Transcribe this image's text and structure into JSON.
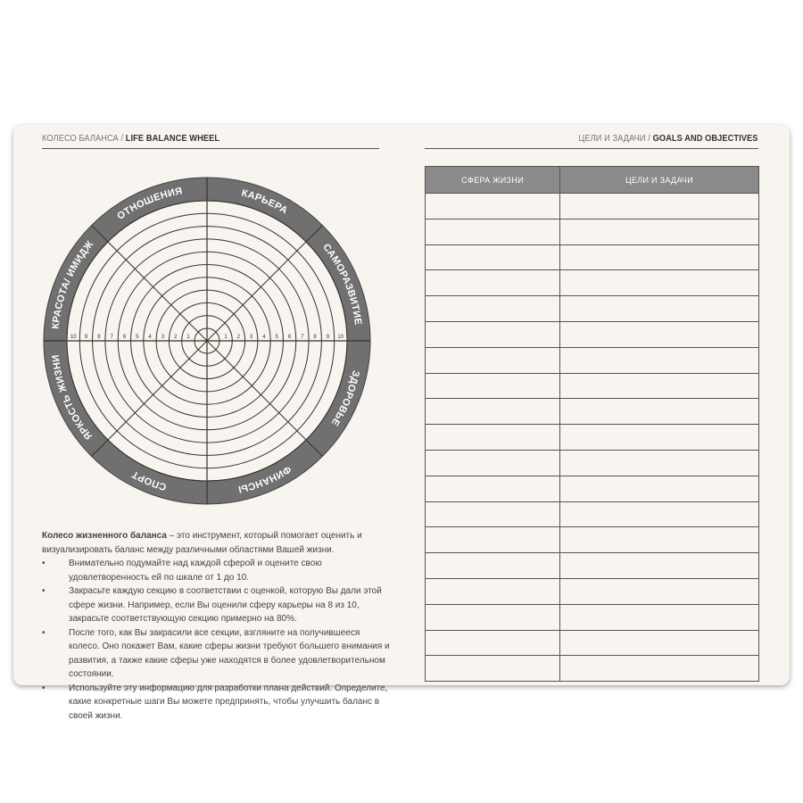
{
  "left_page": {
    "header_ru": "КОЛЕСО БАЛАНСА /",
    "header_en": "LIFE BALANCE WHEEL",
    "wheel": {
      "sectors": [
        "ЗДОРОВЬЕ",
        "ФИНАНСЫ",
        "СПОРТ",
        "ЯРКОСТЬ ЖИЗНИ",
        "КРАСОТА/ ИМИДЖ",
        "ОТНОШЕНИЯ",
        "КАРЬЕРА",
        "САМОРАЗВИТИЕ"
      ],
      "scale": [
        "1",
        "2",
        "3",
        "4",
        "5",
        "6",
        "7",
        "8",
        "9",
        "10"
      ],
      "ring_color": "#707070",
      "line_color": "#3a302a"
    },
    "intro_bold": "Колесо жизненного баланса",
    "intro_rest": " – это инструмент, который помогает оценить и визуализировать баланс между различными областями Вашей жизни.",
    "bullets": [
      "Внимательно подумайте над каждой сферой и оцените свою удовлетворенность ей по шкале от 1 до 10.",
      "Закрасьте каждую секцию в соответствии с оценкой, которую Вы дали этой сфере жизни. Например, если Вы оценили сферу карьеры на 8 из 10, закрасьте соответствующую секцию примерно на 80%.",
      "После того, как Вы закрасили все секции, взгляните на получившееся колесо. Оно покажет Вам, какие сферы жизни требуют большего внимания и развития, а также какие сферы уже находятся в более удовлетворительном состоянии.",
      "Используйте эту информацию для разработки плана действий. Определите, какие конкретные шаги Вы можете предпринять, чтобы улучшить баланс в своей жизни."
    ]
  },
  "right_page": {
    "header_ru": "ЦЕЛИ И ЗАДАЧИ /",
    "header_en": "GOALS AND OBJECTIVES",
    "table": {
      "columns": [
        "СФЕРА ЖИЗНИ",
        "ЦЕЛИ И ЗАДАЧИ"
      ],
      "empty_rows": 19
    }
  }
}
